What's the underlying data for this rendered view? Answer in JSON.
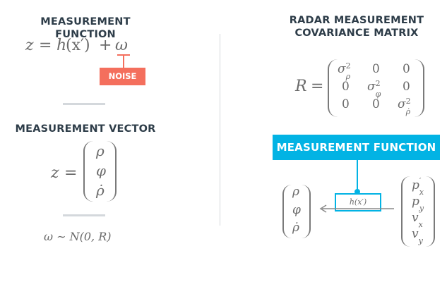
{
  "left": {
    "measurement_function": {
      "heading": "MEASUREMENT FUNCTION",
      "equation": {
        "z": "z",
        "eq": "=",
        "h": "h",
        "arg": "(x′)",
        "plus": "+",
        "omega": "ω"
      },
      "noise_label": "NOISE"
    },
    "measurement_vector": {
      "heading": "MEASUREMENT VECTOR",
      "z": "z",
      "eq": "=",
      "entries": [
        "ρ",
        "φ",
        "ρ̇"
      ]
    },
    "noise_distribution": "ω ∼ N(0, R)"
  },
  "right": {
    "covariance": {
      "heading_line1": "RADAR MEASUREMENT",
      "heading_line2": "COVARIANCE MATRIX",
      "R": "R",
      "eq": "=",
      "rows": [
        {
          "c1_base": "σ",
          "c1_sup": "2",
          "c1_sub": "ρ",
          "c2": "0",
          "c3": "0"
        },
        {
          "c1": "0",
          "c2_base": "σ",
          "c2_sup": "2",
          "c2_sub": "φ",
          "c3": "0"
        },
        {
          "c1": "0",
          "c2": "0",
          "c3_base": "σ",
          "c3_sup": "2",
          "c3_sub": "ρ̇"
        }
      ]
    },
    "mapping": {
      "function_label": "MEASUREMENT FUNCTION",
      "h_label": "h(x′)",
      "output_entries": [
        "ρ",
        "φ",
        "ρ̇"
      ],
      "state_entries": [
        {
          "base": "p",
          "prime": "′",
          "sub": "x"
        },
        {
          "base": "p",
          "prime": "′",
          "sub": "y"
        },
        {
          "base": "v",
          "prime": "′",
          "sub": "x"
        },
        {
          "base": "v",
          "prime": "′",
          "sub": "y"
        }
      ]
    }
  },
  "colors": {
    "heading": "#2e3d49",
    "noise": "#f46f5d",
    "accent": "#02b3e4",
    "math": "#6a6a6a",
    "divider": "#d4d8dc"
  }
}
